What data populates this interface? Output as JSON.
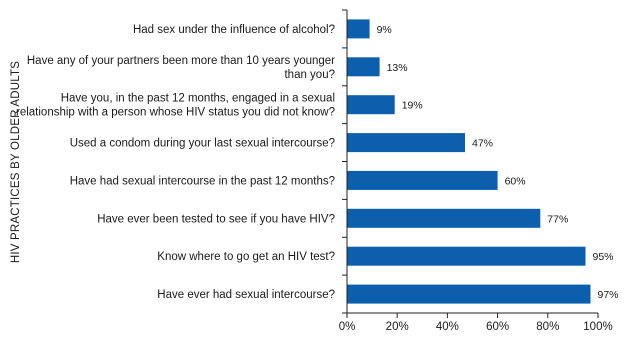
{
  "chart_data": {
    "type": "bar",
    "orientation": "horizontal",
    "ylabel": "HIV PRACTICES BY OLDER ADULTS",
    "xlabel": "",
    "xlim": [
      0,
      100
    ],
    "x_ticks": [
      "0%",
      "20%",
      "40%",
      "60%",
      "80%",
      "100%"
    ],
    "grid": false,
    "bar_color": "#0b5fad",
    "categories": [
      [
        "Had sex under the influence of alcohol?"
      ],
      [
        "Have any of your partners been more than 10 years younger",
        "than you?"
      ],
      [
        "Have you, in the past 12 months, engaged in a sexual",
        "relationship with a person whose HIV status you did not know?"
      ],
      [
        "Used a condom during your last sexual intercourse?"
      ],
      [
        "Have had sexual intercourse in the past 12 months?"
      ],
      [
        "Have ever been tested to see if you have HIV?"
      ],
      [
        "Know where to go get an HIV test?"
      ],
      [
        "Have ever had sexual intercourse?"
      ]
    ],
    "values": [
      9,
      13,
      19,
      47,
      60,
      77,
      95,
      97
    ],
    "value_labels": [
      "9%",
      "13%",
      "19%",
      "47%",
      "60%",
      "77%",
      "95%",
      "97%"
    ]
  }
}
